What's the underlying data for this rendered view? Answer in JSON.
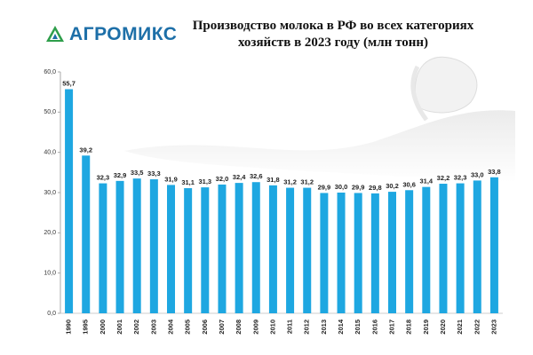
{
  "logo": {
    "text": "АГРОМИКС"
  },
  "chart_data": {
    "type": "bar",
    "title": "Производство молока в РФ во всех категориях хозяйств в 2023 году (млн тонн)",
    "categories": [
      "1990",
      "1995",
      "2000",
      "2001",
      "2002",
      "2003",
      "2004",
      "2005",
      "2006",
      "2007",
      "2008",
      "2009",
      "2010",
      "2011",
      "2012",
      "2013",
      "2014",
      "2015",
      "2016",
      "2017",
      "2018",
      "2019",
      "2020",
      "2021",
      "2022",
      "2023"
    ],
    "values": [
      55.7,
      39.2,
      32.3,
      32.9,
      33.5,
      33.3,
      31.9,
      31.1,
      31.3,
      32.0,
      32.4,
      32.6,
      31.8,
      31.2,
      31.2,
      29.9,
      30.0,
      29.9,
      29.8,
      30.2,
      30.6,
      31.4,
      32.2,
      32.3,
      33.0,
      33.8
    ],
    "value_labels": [
      "55,7",
      "39,2",
      "32,3",
      "32,9",
      "33,5",
      "33,3",
      "31,9",
      "31,1",
      "31,3",
      "32,0",
      "32,4",
      "32,6",
      "31,8",
      "31,2",
      "31,2",
      "29,9",
      "30,0",
      "29,9",
      "29,8",
      "30,2",
      "30,6",
      "31,4",
      "32,2",
      "32,3",
      "33,0",
      "33,8"
    ],
    "color": "#1ea7e1",
    "ylim": [
      0,
      60
    ],
    "yticks": [
      {
        "value": 0,
        "label": "0,0"
      },
      {
        "value": 10,
        "label": "10,0"
      },
      {
        "value": 20,
        "label": "20,0"
      },
      {
        "value": 30,
        "label": "30,0"
      },
      {
        "value": 40,
        "label": "40,0"
      },
      {
        "value": 50,
        "label": "50,0"
      },
      {
        "value": 60,
        "label": "60,0"
      }
    ],
    "grid": false
  }
}
